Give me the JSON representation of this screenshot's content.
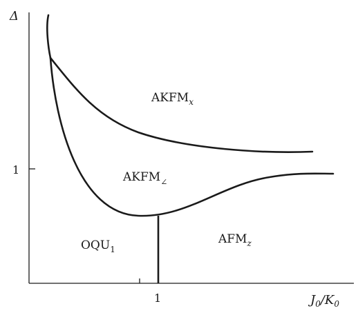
{
  "diagram": {
    "y_axis_label": "Δ",
    "x_axis_label": {
      "main": "J",
      "sub1": "0",
      "slash": "/K",
      "sub2": "0"
    },
    "y_tick_label": "1",
    "x_tick_label": "1",
    "regions": [
      {
        "id": "akfm-x",
        "main": "AKFM",
        "sub": "x"
      },
      {
        "id": "akfm-angle",
        "main": "AKFM",
        "sub": "∠"
      },
      {
        "id": "oqu1",
        "main": "OQU",
        "sub": "1"
      },
      {
        "id": "afm-z",
        "main": "AFM",
        "sub": "z"
      }
    ],
    "colors": {
      "line": "#1a1a1a",
      "background": "#ffffff"
    }
  }
}
